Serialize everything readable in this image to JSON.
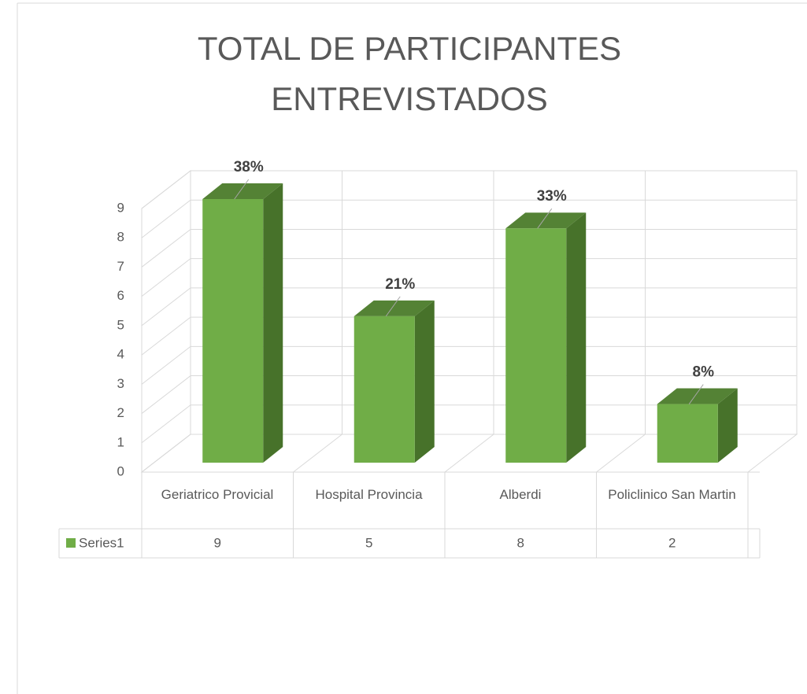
{
  "chart_data": {
    "type": "bar3d",
    "title": "TOTAL DE PARTICIPANTES ENTREVISTADOS",
    "categories": [
      "Geriatrico Provicial",
      "Hospital Provincia",
      "Alberdi",
      "Policlinico San Martin"
    ],
    "series": [
      {
        "name": "Series1",
        "color": "#70ad47",
        "values": [
          9,
          5,
          8,
          2
        ]
      }
    ],
    "percent_labels": [
      "38%",
      "21%",
      "33%",
      "8%"
    ],
    "ylim": [
      0,
      9
    ],
    "yticks": [
      0,
      1,
      2,
      3,
      4,
      5,
      6,
      7,
      8,
      9
    ],
    "grid": true
  }
}
